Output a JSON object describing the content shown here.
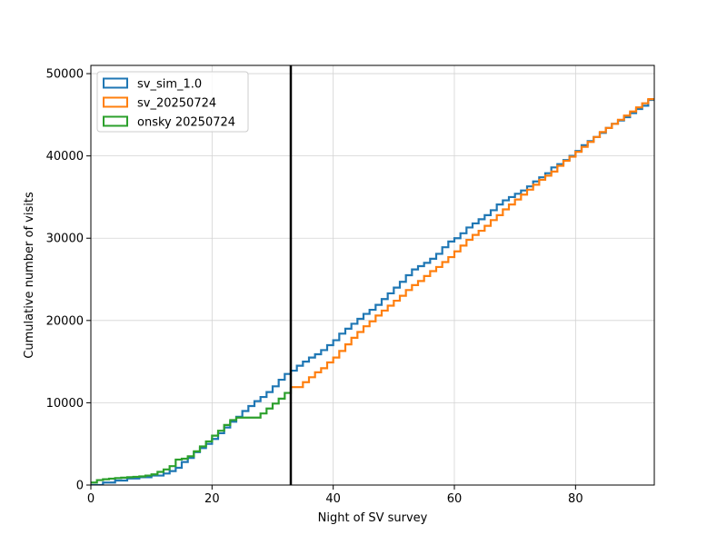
{
  "chart_data": {
    "type": "line",
    "xlabel": "Night of SV survey",
    "ylabel": "Cumulative number of visits",
    "xlim": [
      0,
      93
    ],
    "ylim": [
      0,
      51000
    ],
    "xticks": [
      0,
      20,
      40,
      60,
      80
    ],
    "yticks": [
      0,
      10000,
      20000,
      30000,
      40000,
      50000
    ],
    "grid": true,
    "legend_placement": "top-left",
    "vline": {
      "x": 33,
      "color": "#000000"
    },
    "series": [
      {
        "name": "sv_sim_1.0",
        "color": "#1f77b4",
        "points": [
          [
            0,
            0
          ],
          [
            2,
            300
          ],
          [
            4,
            550
          ],
          [
            6,
            800
          ],
          [
            8,
            950
          ],
          [
            10,
            1150
          ],
          [
            12,
            1400
          ],
          [
            13,
            1700
          ],
          [
            14,
            2100
          ],
          [
            15,
            2800
          ],
          [
            16,
            3300
          ],
          [
            17,
            4000
          ],
          [
            18,
            4500
          ],
          [
            19,
            5000
          ],
          [
            20,
            5600
          ],
          [
            21,
            6300
          ],
          [
            22,
            7000
          ],
          [
            23,
            7700
          ],
          [
            24,
            8300
          ],
          [
            25,
            9000
          ],
          [
            26,
            9600
          ],
          [
            27,
            10200
          ],
          [
            28,
            10700
          ],
          [
            29,
            11300
          ],
          [
            30,
            12000
          ],
          [
            31,
            12800
          ],
          [
            32,
            13500
          ],
          [
            33,
            13900
          ],
          [
            34,
            14500
          ],
          [
            35,
            15000
          ],
          [
            36,
            15500
          ],
          [
            37,
            15900
          ],
          [
            38,
            16400
          ],
          [
            39,
            17000
          ],
          [
            40,
            17600
          ],
          [
            41,
            18400
          ],
          [
            42,
            19000
          ],
          [
            43,
            19600
          ],
          [
            44,
            20200
          ],
          [
            45,
            20800
          ],
          [
            46,
            21300
          ],
          [
            47,
            21900
          ],
          [
            48,
            22600
          ],
          [
            49,
            23300
          ],
          [
            50,
            24000
          ],
          [
            51,
            24700
          ],
          [
            52,
            25500
          ],
          [
            53,
            26200
          ],
          [
            54,
            26600
          ],
          [
            55,
            27000
          ],
          [
            56,
            27500
          ],
          [
            57,
            28100
          ],
          [
            58,
            28900
          ],
          [
            59,
            29600
          ],
          [
            60,
            30000
          ],
          [
            61,
            30600
          ],
          [
            62,
            31300
          ],
          [
            63,
            31800
          ],
          [
            64,
            32300
          ],
          [
            65,
            32800
          ],
          [
            66,
            33400
          ],
          [
            67,
            34100
          ],
          [
            68,
            34600
          ],
          [
            69,
            35000
          ],
          [
            70,
            35400
          ],
          [
            71,
            35800
          ],
          [
            72,
            36300
          ],
          [
            73,
            36900
          ],
          [
            74,
            37400
          ],
          [
            75,
            37900
          ],
          [
            76,
            38600
          ],
          [
            77,
            39000
          ],
          [
            78,
            39500
          ],
          [
            79,
            40000
          ],
          [
            80,
            40600
          ],
          [
            81,
            41300
          ],
          [
            82,
            41800
          ],
          [
            83,
            42300
          ],
          [
            84,
            42800
          ],
          [
            85,
            43400
          ],
          [
            86,
            43900
          ],
          [
            87,
            44300
          ],
          [
            88,
            44700
          ],
          [
            89,
            45200
          ],
          [
            90,
            45700
          ],
          [
            91,
            46100
          ],
          [
            92,
            46800
          ],
          [
            93,
            46800
          ]
        ]
      },
      {
        "name": "sv_20250724",
        "color": "#ff7f0e",
        "points": [
          [
            33,
            11900
          ],
          [
            34,
            11900
          ],
          [
            35,
            12500
          ],
          [
            36,
            13100
          ],
          [
            37,
            13700
          ],
          [
            38,
            14200
          ],
          [
            39,
            14900
          ],
          [
            40,
            15500
          ],
          [
            41,
            16300
          ],
          [
            42,
            17100
          ],
          [
            43,
            17900
          ],
          [
            44,
            18600
          ],
          [
            45,
            19300
          ],
          [
            46,
            19900
          ],
          [
            47,
            20600
          ],
          [
            48,
            21200
          ],
          [
            49,
            21800
          ],
          [
            50,
            22400
          ],
          [
            51,
            23000
          ],
          [
            52,
            23700
          ],
          [
            53,
            24300
          ],
          [
            54,
            24800
          ],
          [
            55,
            25400
          ],
          [
            56,
            26000
          ],
          [
            57,
            26500
          ],
          [
            58,
            27100
          ],
          [
            59,
            27700
          ],
          [
            60,
            28400
          ],
          [
            61,
            29100
          ],
          [
            62,
            29800
          ],
          [
            63,
            30400
          ],
          [
            64,
            30900
          ],
          [
            65,
            31500
          ],
          [
            66,
            32200
          ],
          [
            67,
            32800
          ],
          [
            68,
            33500
          ],
          [
            69,
            34100
          ],
          [
            70,
            34700
          ],
          [
            71,
            35300
          ],
          [
            72,
            35900
          ],
          [
            73,
            36500
          ],
          [
            74,
            37100
          ],
          [
            75,
            37600
          ],
          [
            76,
            38100
          ],
          [
            77,
            38800
          ],
          [
            78,
            39400
          ],
          [
            79,
            39900
          ],
          [
            80,
            40500
          ],
          [
            81,
            41100
          ],
          [
            82,
            41700
          ],
          [
            83,
            42300
          ],
          [
            84,
            42900
          ],
          [
            85,
            43400
          ],
          [
            86,
            43900
          ],
          [
            87,
            44400
          ],
          [
            88,
            44900
          ],
          [
            89,
            45400
          ],
          [
            90,
            45900
          ],
          [
            91,
            46400
          ],
          [
            92,
            46900
          ],
          [
            93,
            46900
          ]
        ]
      },
      {
        "name": "onsky 20250724",
        "color": "#2ca02c",
        "points": [
          [
            0,
            300
          ],
          [
            1,
            600
          ],
          [
            2,
            700
          ],
          [
            3,
            780
          ],
          [
            4,
            850
          ],
          [
            5,
            900
          ],
          [
            6,
            950
          ],
          [
            7,
            1000
          ],
          [
            8,
            1050
          ],
          [
            9,
            1150
          ],
          [
            10,
            1300
          ],
          [
            11,
            1600
          ],
          [
            12,
            1900
          ],
          [
            13,
            2300
          ],
          [
            14,
            3100
          ],
          [
            15,
            3200
          ],
          [
            16,
            3500
          ],
          [
            17,
            4100
          ],
          [
            18,
            4700
          ],
          [
            19,
            5300
          ],
          [
            20,
            6000
          ],
          [
            21,
            6600
          ],
          [
            22,
            7300
          ],
          [
            23,
            7900
          ],
          [
            24,
            8200
          ],
          [
            25,
            8200
          ],
          [
            26,
            8200
          ],
          [
            27,
            8200
          ],
          [
            28,
            8700
          ],
          [
            29,
            9300
          ],
          [
            30,
            9900
          ],
          [
            31,
            10500
          ],
          [
            32,
            11200
          ],
          [
            33,
            11900
          ]
        ]
      }
    ]
  }
}
